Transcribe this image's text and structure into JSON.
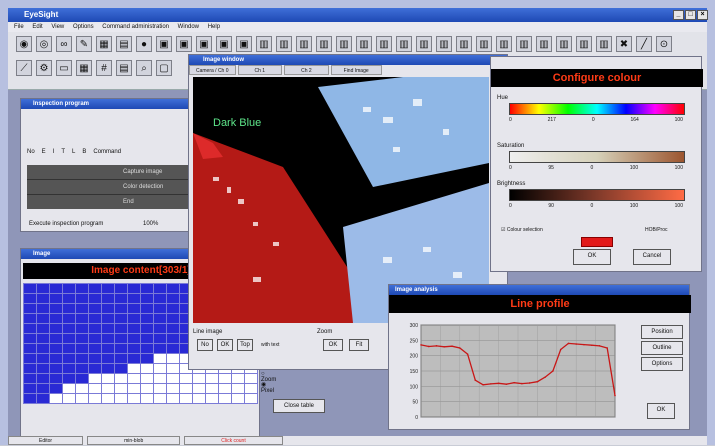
{
  "window": {
    "title": "EyeSight"
  },
  "menu": [
    "File",
    "Edit",
    "View",
    "Options",
    "Command administration",
    "Window",
    "Help"
  ],
  "toolbar_icons": [
    "camera-icon",
    "camera-icon",
    "link-icon",
    "pencil-icon",
    "image-icon",
    "image-icon",
    "record-icon",
    "scan-icon",
    "scan-icon",
    "scan-icon",
    "scan-icon",
    "scan-icon",
    "tool-icon",
    "tool-icon",
    "tool-icon",
    "tool-icon",
    "tool-icon",
    "tool-icon",
    "tool-icon",
    "tool-icon",
    "tool-icon",
    "tool-icon",
    "tool-icon",
    "tool-icon",
    "tool-icon",
    "tool-icon",
    "tool-icon",
    "tool-icon",
    "close-icon",
    "line-icon",
    "target-icon"
  ],
  "program_panel": {
    "columns": [
      "No",
      "E",
      "I",
      "T",
      "L",
      "B",
      "Command"
    ],
    "rows": [
      "Capture image",
      "Color detection",
      "End"
    ],
    "execute_label": "Execute inspection program",
    "percent": "100%"
  },
  "image_content": {
    "title": "Image content[303/1]"
  },
  "image_window": {
    "tabs": [
      "Camera / Ch 0",
      "Ch 1",
      "Ch 2",
      "Find Image"
    ],
    "overlay_label": "Dark Blue",
    "line_image_label": "Line image",
    "zoom_label": "Zoom",
    "line_buttons": [
      "No",
      "OK",
      "Top"
    ],
    "with_text": "with text",
    "zoom_buttons": [
      "OK",
      "Fit"
    ]
  },
  "configure_colour": {
    "title": "Configure colour",
    "hue_label": "Hue",
    "saturation_label": "Saturation",
    "brightness_label": "Brightness",
    "hue_values": [
      "0",
      "217",
      "0",
      "164",
      "100"
    ],
    "sat_values": [
      "0",
      "95",
      "0",
      "100",
      "100"
    ],
    "bri_values": [
      "0",
      "90",
      "0",
      "100",
      "100"
    ],
    "colour_selection": "Colour selection",
    "hsv_mode": "HOB/Proc",
    "ok": "OK",
    "cancel": "Cancel",
    "accent": "#e21a1a"
  },
  "image_analysis": {
    "title": "Image analysis",
    "profile_title": "Line profile",
    "buttons": [
      "Position",
      "Outline",
      "Options"
    ],
    "ok": "OK",
    "y_ticks": [
      "300",
      "250",
      "200",
      "150",
      "100",
      "50",
      "0"
    ]
  },
  "status": {
    "cell1": "Editor",
    "cell2": "min-blob",
    "cell3": "Click count"
  },
  "radio": {
    "zoom": "Zoom",
    "pixel": "Pixel",
    "close": "Close table"
  },
  "chart_data": {
    "type": "line",
    "title": "Line profile",
    "x": [
      0,
      4,
      8,
      12,
      16,
      20,
      24,
      28,
      32,
      36,
      40,
      44,
      48,
      52,
      56,
      60,
      64,
      68,
      72,
      76,
      80,
      84,
      88,
      92,
      96,
      100
    ],
    "series": [
      {
        "values": [
          235,
          230,
          232,
          229,
          231,
          225,
          205,
          120,
          105,
          108,
          110,
          107,
          112,
          109,
          111,
          115,
          130,
          150,
          220,
          240,
          238,
          236,
          234,
          232,
          225,
          70
        ]
      }
    ],
    "ylim": [
      0,
      300
    ],
    "grid": true
  }
}
